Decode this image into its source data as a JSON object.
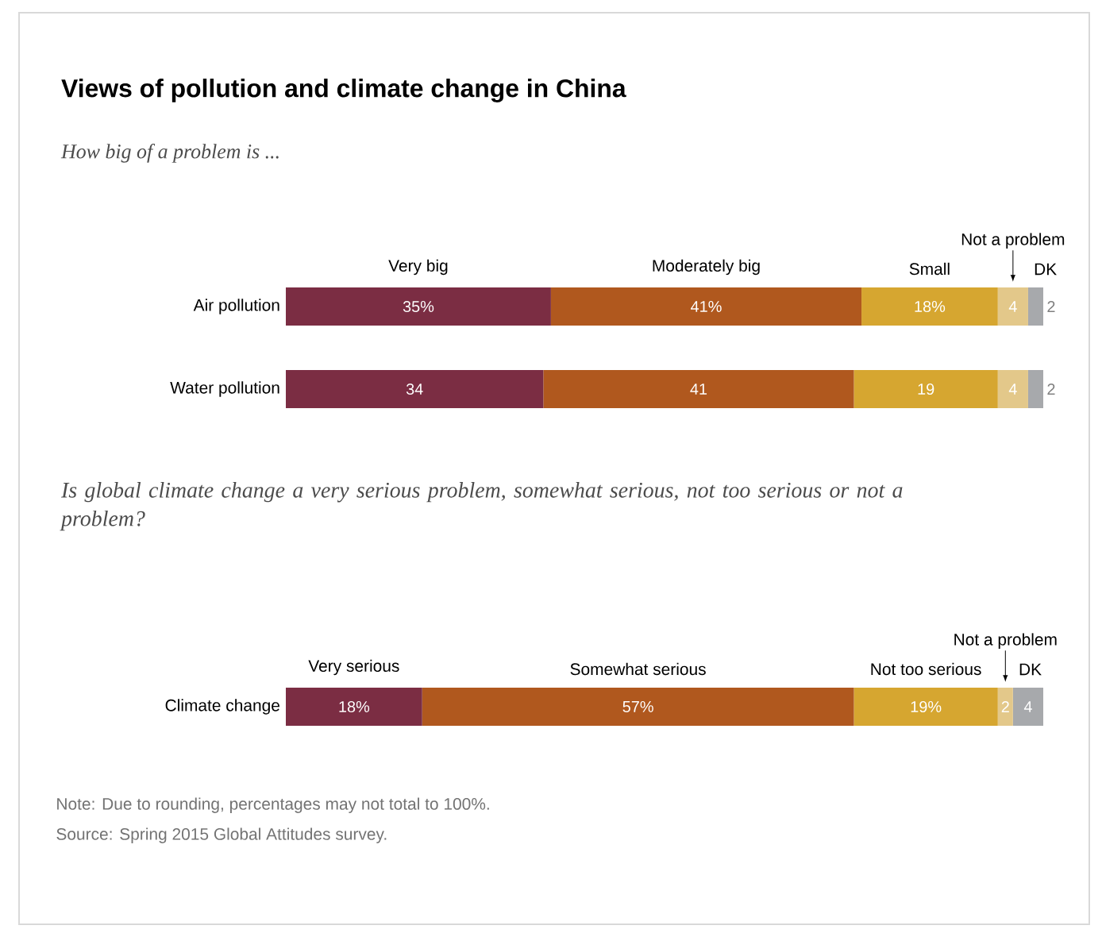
{
  "chart_data": [
    {
      "type": "bar",
      "title": "Views of pollution and climate change in China",
      "subtitle": "How big of a problem is ...",
      "orientation": "horizontal",
      "stacked": true,
      "categories": [
        "Air pollution",
        "Water pollution"
      ],
      "xlim": [
        0,
        100
      ],
      "tick_labels": "y",
      "series": [
        {
          "name": "Very big",
          "color": "#7b2d43",
          "values": [
            35,
            34
          ],
          "value_labels": [
            "35%",
            "34"
          ]
        },
        {
          "name": "Moderately big",
          "color": "#b0581e",
          "values": [
            41,
            41
          ],
          "value_labels": [
            "41%",
            "41"
          ]
        },
        {
          "name": "Small",
          "color": "#d6a630",
          "values": [
            18,
            19
          ],
          "value_labels": [
            "18%",
            "19"
          ]
        },
        {
          "name": "Not a problem",
          "color": "#e3c88a",
          "values": [
            4,
            4
          ],
          "value_labels": [
            "4",
            "4"
          ]
        },
        {
          "name": "DK",
          "color": "#a7a9ac",
          "values": [
            2,
            2
          ],
          "value_labels": [
            "2",
            "2"
          ]
        }
      ]
    },
    {
      "type": "bar",
      "title": "Is global climate change a very serious problem, somewhat serious, not too serious or not a problem?",
      "orientation": "horizontal",
      "stacked": true,
      "categories": [
        "Climate change"
      ],
      "xlim": [
        0,
        100
      ],
      "tick_labels": "y",
      "series": [
        {
          "name": "Very serious",
          "color": "#7b2d43",
          "values": [
            18
          ],
          "value_labels": [
            "18%"
          ]
        },
        {
          "name": "Somewhat serious",
          "color": "#b0581e",
          "values": [
            57
          ],
          "value_labels": [
            "57%"
          ]
        },
        {
          "name": "Not too serious",
          "color": "#d6a630",
          "values": [
            19
          ],
          "value_labels": [
            "19%"
          ]
        },
        {
          "name": "Not a problem",
          "color": "#e3c88a",
          "values": [
            2
          ],
          "value_labels": [
            "2"
          ]
        },
        {
          "name": "DK",
          "color": "#a7a9ac",
          "values": [
            4
          ],
          "value_labels": [
            "4"
          ]
        }
      ],
      "annotations": [
        "Note: Due to rounding, percentages may not total to 100%.",
        "Source: Spring 2015 Global Attitudes survey."
      ]
    }
  ]
}
